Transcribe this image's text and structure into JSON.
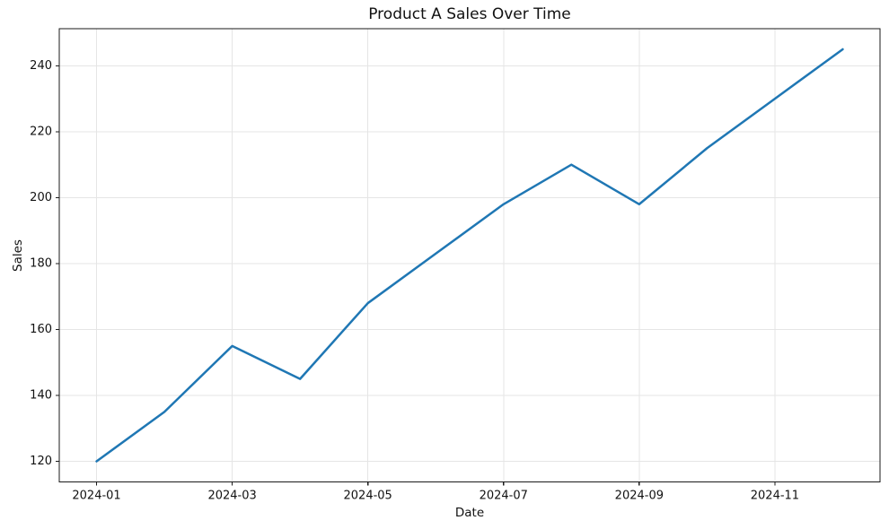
{
  "chart_data": {
    "type": "line",
    "title": "Product A Sales Over Time",
    "xlabel": "Date",
    "ylabel": "Sales",
    "x": [
      "2024-01",
      "2024-02",
      "2024-03",
      "2024-04",
      "2024-05",
      "2024-06",
      "2024-07",
      "2024-08",
      "2024-09",
      "2024-10",
      "2024-11",
      "2024-12"
    ],
    "series": [
      {
        "name": "Product A",
        "values": [
          120,
          135,
          155,
          145,
          168,
          183,
          198,
          210,
          198,
          215,
          230,
          245
        ]
      }
    ],
    "xtick_labels": [
      "2024-01",
      "2024-03",
      "2024-05",
      "2024-07",
      "2024-09",
      "2024-11"
    ],
    "yticks": [
      120,
      140,
      160,
      180,
      200,
      220,
      240
    ],
    "ylim": [
      113.75,
      251.25
    ],
    "grid": true,
    "legend_position": "none",
    "colors": {
      "line": "#1f77b4",
      "grid": "#e5e5e5",
      "spine": "#1a1a1a",
      "text": "#111111",
      "background": "#ffffff"
    }
  }
}
